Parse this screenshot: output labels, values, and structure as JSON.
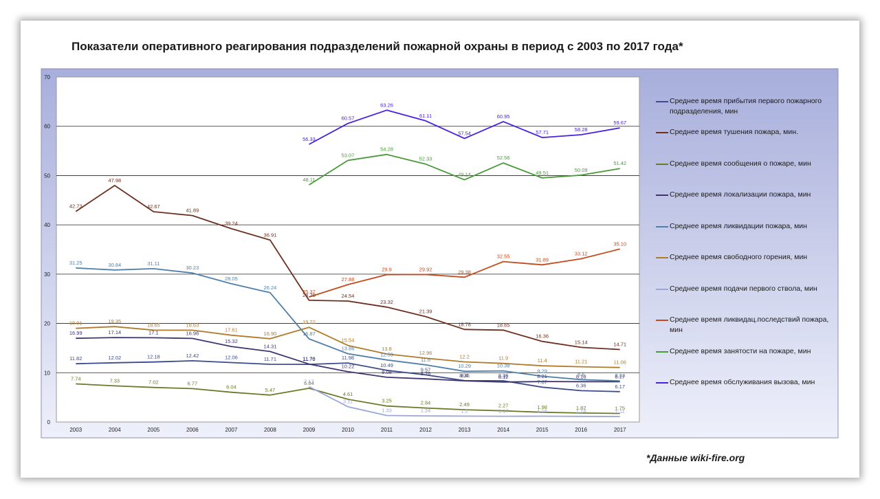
{
  "title": "Показатели оперативного реагирования подразделений пожарной охраны в период с 2003 по 2017 года*",
  "footnote": "*Данные wiki-fire.org",
  "chart_data": {
    "type": "line",
    "x": [
      "2003",
      "2004",
      "2005",
      "2006",
      "2007",
      "2008",
      "2009",
      "2010",
      "2011",
      "2012",
      "2013",
      "2014",
      "2015",
      "2016",
      "2017"
    ],
    "ylim": [
      0,
      70
    ],
    "yticks": [
      "0",
      "10",
      "20",
      "30",
      "40",
      "50",
      "60",
      "70"
    ],
    "grid": true,
    "legend_position": "right",
    "series": [
      {
        "name": "Среднее время прибытия первого пожарного подразделения, мин",
        "color": "#3b4a8c",
        "values": [
          11.82,
          12.02,
          12.18,
          12.42,
          12.06,
          11.71,
          11.7,
          11.98,
          10.49,
          9.57,
          8.4,
          8.36,
          7.07,
          6.36,
          6.17
        ],
        "labels": [
          "11.82",
          "12.02",
          "12.18",
          "12.42",
          "12.06",
          "11.71",
          "11.70",
          "11.98",
          "10.49",
          "9.57",
          "8.4",
          "8.36",
          "7.07",
          "6.36",
          "6.17"
        ]
      },
      {
        "name": "Среднее время тушения пожара, мин.",
        "color": "#6b2f1e",
        "values": [
          42.73,
          47.98,
          42.67,
          41.89,
          39.24,
          36.91,
          24.7,
          24.54,
          23.32,
          21.39,
          18.78,
          18.65,
          16.36,
          15.14,
          14.71
        ],
        "labels": [
          "42.73",
          "47.98",
          "42.67",
          "41.89",
          "39.24",
          "36.91",
          "24.70",
          "24.54",
          "23.32",
          "21.39",
          "18.78",
          "18.65",
          "16.36",
          "15.14",
          "14.71"
        ]
      },
      {
        "name": "Среднее время сообщения о пожаре, мин",
        "color": "#6b7a28",
        "values": [
          7.74,
          7.33,
          7.02,
          6.77,
          6.04,
          5.47,
          6.84,
          4.61,
          3.25,
          2.84,
          2.49,
          2.27,
          1.98,
          1.82,
          1.75
        ],
        "labels": [
          "7.74",
          "7.33",
          "7.02",
          "6.77",
          "6.04",
          "5.47",
          "6.84",
          "4.61",
          "3.25",
          "2.84",
          "2.49",
          "2.27",
          "1.98",
          "1.82",
          "1.75"
        ]
      },
      {
        "name": "Среднее время локализации пожара, мин",
        "color": "#3f3470",
        "values": [
          16.99,
          17.14,
          17.1,
          16.96,
          15.32,
          14.31,
          11.76,
          10.22,
          9.08,
          8.76,
          8.35,
          8.12,
          8.21,
          8.18,
          8.17
        ],
        "labels": [
          "16.99",
          "17.14",
          "17.1",
          "16.96",
          "15.32",
          "14.31",
          "11.76",
          "10.22",
          "9.08",
          "8.76",
          "8.35",
          "8.12",
          "8.21",
          "8.18",
          "8.17"
        ]
      },
      {
        "name": "Среднее время ликвидации пожара, мин",
        "color": "#4f7fa8",
        "values": [
          31.25,
          30.84,
          31.11,
          30.23,
          28.05,
          26.24,
          16.87,
          13.86,
          12.59,
          11.6,
          10.29,
          10.38,
          9.29,
          8.6,
          8.34
        ],
        "labels": [
          "31.25",
          "30.84",
          "31.11",
          "30.23",
          "28.05",
          "26.24",
          "16.87",
          "13.86",
          "12.59",
          "11.6",
          "10.29",
          "10.38",
          "9.29",
          "8.6",
          "8.34"
        ]
      },
      {
        "name": "Среднее время свободного горения, мин",
        "color": "#b07a2a",
        "values": [
          19.01,
          19.35,
          18.65,
          18.63,
          17.61,
          16.9,
          19.22,
          15.54,
          13.8,
          12.96,
          12.2,
          11.9,
          11.4,
          11.21,
          11.06
        ],
        "labels": [
          "19.01",
          "19.35",
          "18.65",
          "18.63",
          "17.61",
          "16.90",
          "19.22",
          "15.54",
          "13.8",
          "12.96",
          "12.2",
          "11.9",
          "11.4",
          "11.21",
          "11.06"
        ]
      },
      {
        "name": "Среднее время подачи первого ствола, мин",
        "color": "#9aa6d6",
        "values": [
          null,
          null,
          null,
          null,
          null,
          null,
          7.17,
          3.11,
          1.33,
          1.24,
          1.2,
          1.17,
          1.18,
          1.14,
          1.11
        ],
        "labels": [
          "",
          "",
          "",
          "",
          "",
          "",
          "7.17",
          "3.11",
          "1.33",
          "1.24",
          "1.2",
          "1.17",
          "1.18",
          "1.14",
          "1.11"
        ]
      },
      {
        "name": "Среднее время ликвидац.последствий пожара, мин",
        "color": "#c44a1e",
        "values": [
          null,
          null,
          null,
          null,
          null,
          null,
          25.37,
          27.88,
          29.9,
          29.92,
          29.38,
          32.55,
          31.89,
          33.12,
          35.1
        ],
        "labels": [
          "",
          "",
          "",
          "",
          "",
          "",
          "25.37",
          "27.88",
          "29.9",
          "29.92",
          "29.38",
          "32.55",
          "31.89",
          "33.12",
          "35.10"
        ]
      },
      {
        "name": "Среднее время занятости на пожаре, мин",
        "color": "#4a9a3a",
        "values": [
          null,
          null,
          null,
          null,
          null,
          null,
          48.11,
          53.07,
          54.28,
          52.33,
          49.14,
          52.56,
          49.51,
          50.09,
          51.42
        ],
        "labels": [
          "",
          "",
          "",
          "",
          "",
          "",
          "48.11",
          "53.07",
          "54.28",
          "52.33",
          "49.14",
          "52.56",
          "49.51",
          "50.09",
          "51.42"
        ]
      },
      {
        "name": "Среднее время обслуживания вызова, мин",
        "color": "#4a1ee0",
        "values": [
          null,
          null,
          null,
          null,
          null,
          null,
          56.33,
          60.57,
          63.26,
          61.11,
          57.54,
          60.95,
          57.71,
          58.28,
          59.67
        ],
        "labels": [
          "",
          "",
          "",
          "",
          "",
          "",
          "56.33",
          "60.57",
          "63.26",
          "61.11",
          "57.54",
          "60.95",
          "57.71",
          "58.28",
          "59.67"
        ]
      }
    ]
  }
}
